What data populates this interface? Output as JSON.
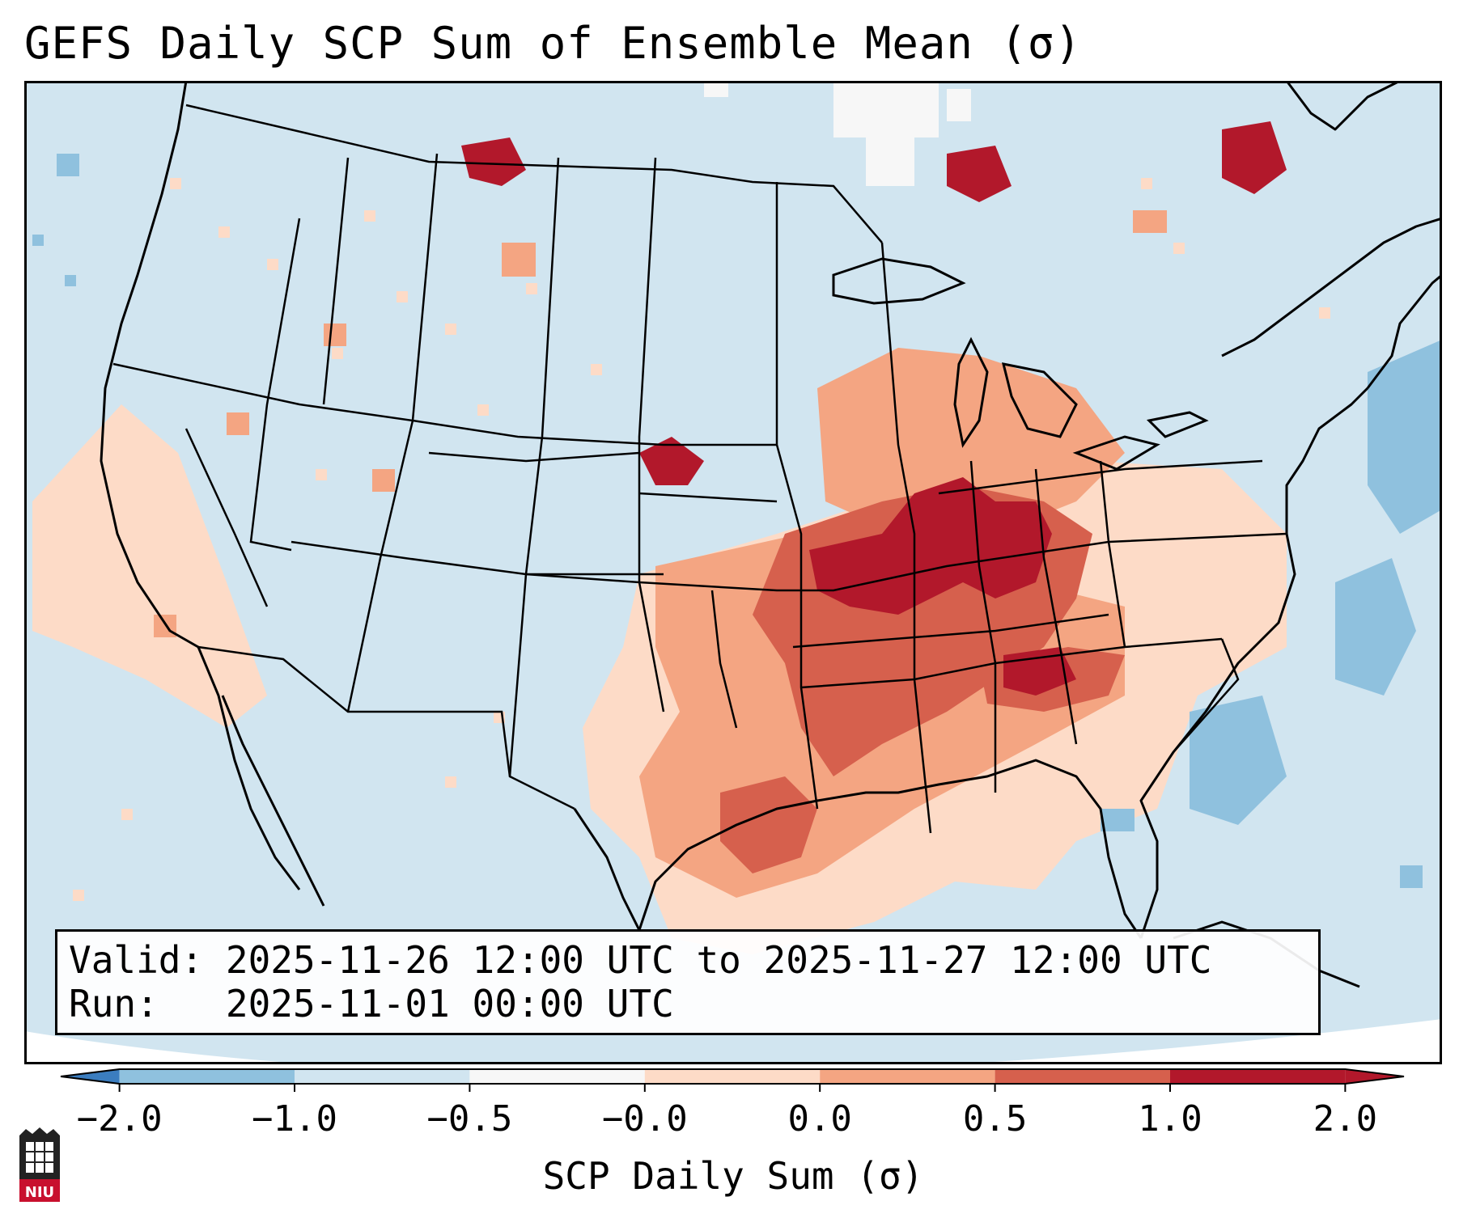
{
  "title": "GEFS Daily SCP Sum of Ensemble Mean (σ)",
  "valid_label": "Valid:",
  "valid_value": "2025-11-26 12:00 UTC to 2025-11-27 12:00 UTC",
  "run_label": "Run:",
  "run_value": "2025-11-01 00:00 UTC",
  "colorbar": {
    "label": "SCP Daily Sum (σ)",
    "ticks": [
      "−2.0",
      "−1.0",
      "−0.5",
      "−0.0",
      "0.0",
      "0.5",
      "1.0",
      "2.0"
    ],
    "colors": [
      "#3b7dbf",
      "#8fc1de",
      "#d1e5f0",
      "#f7f7f7",
      "#fddbc7",
      "#f4a582",
      "#d6604d",
      "#b2182b"
    ],
    "extend": "both"
  },
  "map": {
    "background_color": "#d1e5f0",
    "region": "Continental United States",
    "high_anomaly_area": "Midwest / Ohio Valley / Mid-South",
    "positive_anomaly_area": "Southern Plains to Gulf Coast and Southeast",
    "negative_anomaly_area": "Western Atlantic offshore"
  },
  "logo": {
    "text": "NIU"
  }
}
